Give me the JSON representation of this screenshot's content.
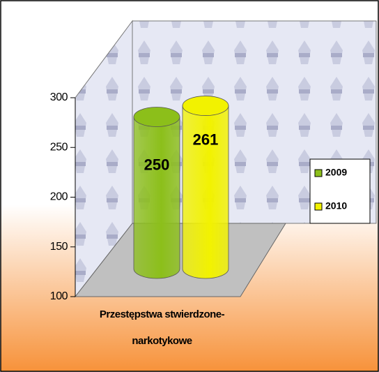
{
  "chart_data": {
    "type": "bar",
    "categories": [
      "Przestępstwa stwierdzone-narkotykowe"
    ],
    "series": [
      {
        "name": "2009",
        "color": "#8cbf1a",
        "values": [
          250
        ]
      },
      {
        "name": "2010",
        "color": "#f2f200",
        "values": [
          261
        ]
      }
    ],
    "ylim": [
      100,
      300
    ],
    "yticks": [
      100,
      150,
      200,
      250,
      300
    ],
    "legend": "right"
  }
}
